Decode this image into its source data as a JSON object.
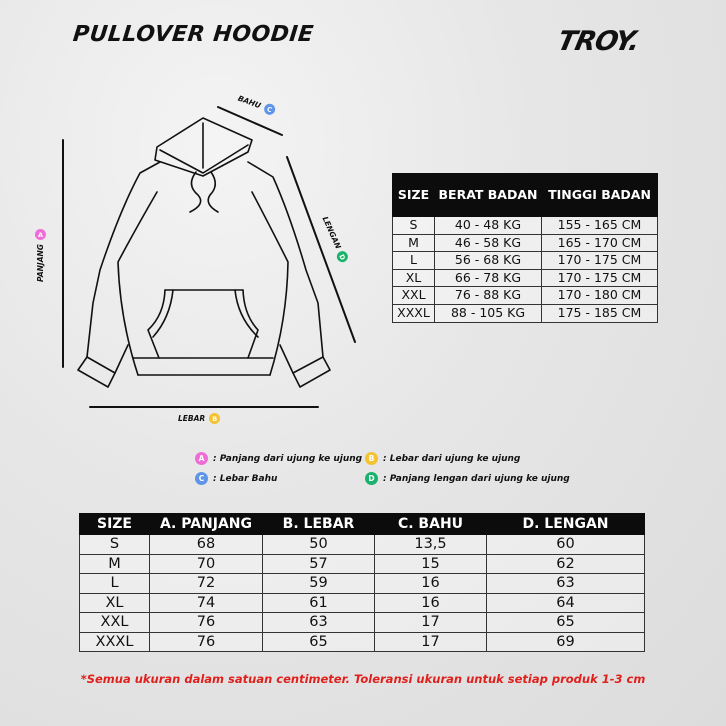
{
  "header": {
    "title": "PULLOVER HOODIE",
    "brand_logo": "TROY."
  },
  "colors": {
    "a": "#f06dd8",
    "b": "#f5c232",
    "c": "#5f95e8",
    "d": "#19b36b",
    "note": "#e0201c"
  },
  "diagram": {
    "panjang": {
      "label": "PANJANG",
      "key": "A"
    },
    "lebar": {
      "label": "LEBAR",
      "key": "B"
    },
    "bahu": {
      "label": "BAHU",
      "key": "C"
    },
    "lengan": {
      "label": "LENGAN",
      "key": "D"
    }
  },
  "legend": [
    {
      "key": "A",
      "text": ": Panjang dari ujung ke ujung"
    },
    {
      "key": "B",
      "text": ": Lebar dari ujung ke ujung"
    },
    {
      "key": "C",
      "text": ": Lebar Bahu"
    },
    {
      "key": "D",
      "text": ": Panjang lengan dari ujung ke ujung"
    }
  ],
  "fit_table": {
    "headers": [
      "SIZE",
      "BERAT BADAN",
      "TINGGI BADAN"
    ],
    "rows": [
      [
        "S",
        "40 - 48 KG",
        "155 - 165 CM"
      ],
      [
        "M",
        "46 - 58 KG",
        "165 - 170 CM"
      ],
      [
        "L",
        "56 - 68 KG",
        "170 - 175 CM"
      ],
      [
        "XL",
        "66 - 78 KG",
        "170 - 175 CM"
      ],
      [
        "XXL",
        "76 - 88 KG",
        "170 - 180 CM"
      ],
      [
        "XXXL",
        "88 - 105 KG",
        "175 - 185 CM"
      ]
    ]
  },
  "size_table": {
    "headers": [
      "SIZE",
      "A. PANJANG",
      "B. LEBAR",
      "C. BAHU",
      "D. LENGAN"
    ],
    "rows": [
      [
        "S",
        "68",
        "50",
        "13,5",
        "60"
      ],
      [
        "M",
        "70",
        "57",
        "15",
        "62"
      ],
      [
        "L",
        "72",
        "59",
        "16",
        "63"
      ],
      [
        "XL",
        "74",
        "61",
        "16",
        "64"
      ],
      [
        "XXL",
        "76",
        "63",
        "17",
        "65"
      ],
      [
        "XXXL",
        "76",
        "65",
        "17",
        "69"
      ]
    ]
  },
  "note": "*Semua ukuran dalam satuan centimeter. Toleransi ukuran untuk setiap produk 1-3 cm"
}
